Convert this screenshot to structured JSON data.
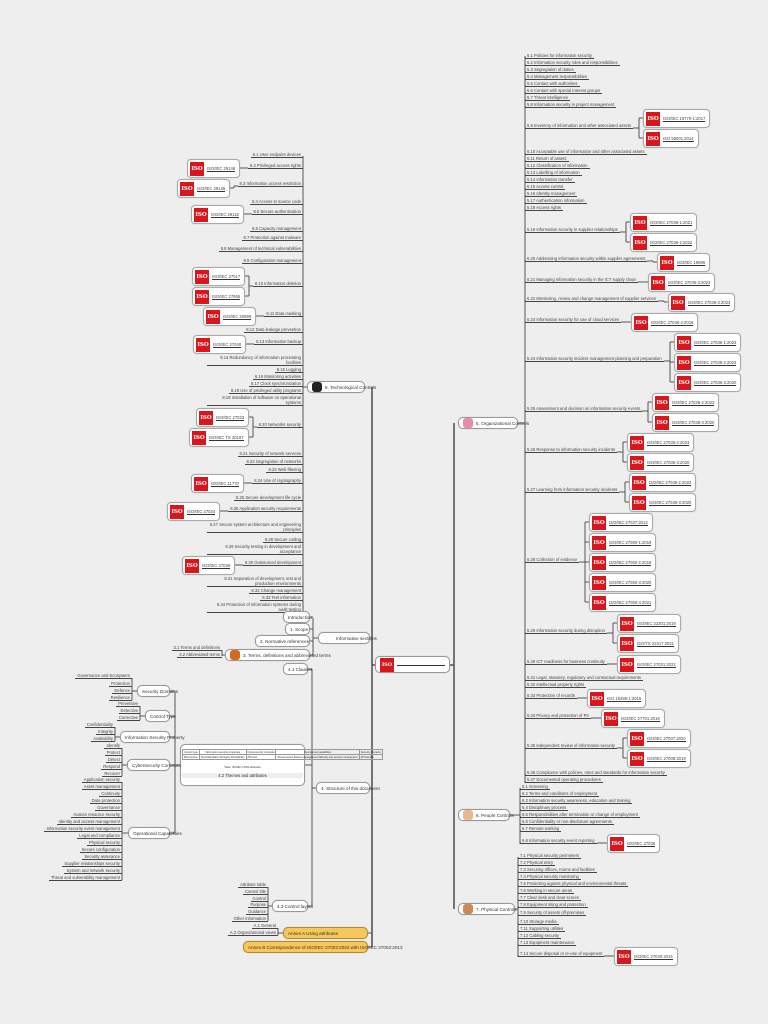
{
  "center": {
    "title": ""
  },
  "org": {
    "label": "5. Organizational Controls",
    "items": [
      {
        "label": "5.1 Policies for information security",
        "refs": []
      },
      {
        "label": "5.2 Information security roles and responsibilities",
        "refs": []
      },
      {
        "label": "5.3 Segregation of duties",
        "refs": []
      },
      {
        "label": "5.4 Management responsibilities",
        "refs": []
      },
      {
        "label": "5.5 Contact with authorities",
        "refs": []
      },
      {
        "label": "5.6 Contact with special interest groups",
        "refs": []
      },
      {
        "label": "5.7 Threat intelligence",
        "refs": []
      },
      {
        "label": "5.8 Information security in project management",
        "refs": []
      },
      {
        "label": "5.9 Inventory of information and other associated assets",
        "refs": [
          "ISO/IEC 19770-1:2017",
          "ISO 55001:2014"
        ]
      },
      {
        "label": "5.10 Acceptable use of information and other associated assets",
        "refs": []
      },
      {
        "label": "5.11 Return of assets",
        "refs": []
      },
      {
        "label": "5.12 Classification of information",
        "refs": []
      },
      {
        "label": "5.13 Labelling of information",
        "refs": []
      },
      {
        "label": "5.14 Information transfer",
        "refs": []
      },
      {
        "label": "5.15 Access control",
        "refs": []
      },
      {
        "label": "5.16 Identity management",
        "refs": []
      },
      {
        "label": "5.17 Authentication information",
        "refs": []
      },
      {
        "label": "5.18 Access rights",
        "refs": []
      },
      {
        "label": "5.19 Information security in supplier relationships",
        "refs": [
          "ISO/IEC 27036-1:2021",
          "ISO/IEC 27036-2:2022"
        ]
      },
      {
        "label": "5.20 Addressing information security within supplier agreements",
        "refs": [
          "ISO/IEC 19086"
        ]
      },
      {
        "label": "5.21 Managing information security in the ICT supply chain",
        "refs": [
          "ISO/IEC 27036-3:2023"
        ]
      },
      {
        "label": "5.22 Monitoring, review and change management of supplier services",
        "refs": [
          "ISO/IEC 27036-3:2023"
        ]
      },
      {
        "label": "5.23 Information security for use of cloud services",
        "refs": [
          "ISO/IEC 27036-4:2016"
        ]
      },
      {
        "label": "5.24 Information security incident management planning and preparation",
        "refs": [
          "ISO/IEC 27035-1:2023",
          "ISO/IEC 27035-2:2023",
          "ISO/IEC 27035-3:2020"
        ]
      },
      {
        "label": "5.25 Assessment and decision on information security events",
        "refs": [
          "ISO/IEC 27035-2:2023",
          "ISO/IEC 27035-3:2020"
        ]
      },
      {
        "label": "5.26 Response to information security incidents",
        "refs": [
          "ISO/IEC 27035-2:2023",
          "ISO/IEC 27035-3:2020"
        ]
      },
      {
        "label": "5.27 Learning from information security incidents",
        "refs": [
          "ISO/IEC 27035-2:2023",
          "ISO/IEC 27035-3:2020"
        ]
      },
      {
        "label": "5.28 Collection of evidence",
        "refs": [
          "ISO/IEC 27037:2012",
          "ISO/IEC 27050-1:2019",
          "ISO/IEC 27050-2:2018",
          "ISO/IEC 27050-3:2020",
          "ISO/IEC 27050-4:2021"
        ]
      },
      {
        "label": "5.29 Information security during disruption",
        "refs": [
          "ISO/IEC 22301:2019",
          "ISO/TS 22317:2021"
        ]
      },
      {
        "label": "5.30 ICT readiness for business continuity",
        "refs": [
          "ISO/IEC 27031:2022"
        ]
      },
      {
        "label": "5.31 Legal, statutory, regulatory and contractual requirements",
        "refs": []
      },
      {
        "label": "5.32 Intellectual property rights",
        "refs": []
      },
      {
        "label": "5.33 Protection of records",
        "refs": [
          "ISO 15489-1:2016"
        ]
      },
      {
        "label": "5.34 Privacy and protection of PII",
        "refs": [
          "ISO/IEC 27701:2019"
        ]
      },
      {
        "label": "5.35 Independent review of information security",
        "refs": [
          "ISO/IEC 27007:2020",
          "ISO/IEC 27008:2019"
        ]
      },
      {
        "label": "5.36 Compliance with policies, rules and standards for information security",
        "refs": []
      },
      {
        "label": "5.37 Documented operating procedures",
        "refs": []
      }
    ]
  },
  "people": {
    "label": "6. People Controls",
    "items": [
      {
        "label": "6.1 Screening",
        "refs": []
      },
      {
        "label": "6.2 Terms and conditions of employment",
        "refs": []
      },
      {
        "label": "6.3 Information security awareness, education and training",
        "refs": []
      },
      {
        "label": "6.4 Disciplinary process",
        "refs": []
      },
      {
        "label": "6.5 Responsibilities after termination or change of employment",
        "refs": []
      },
      {
        "label": "6.6 Confidentiality or non-disclosure agreements",
        "refs": []
      },
      {
        "label": "6.7 Remote working",
        "refs": []
      },
      {
        "label": "6.8 Information security event reporting",
        "refs": [
          "ISO/IEC 27035"
        ]
      }
    ]
  },
  "physical": {
    "label": "7. Physical Controls",
    "items": [
      {
        "label": "7.1 Physical security perimeters",
        "refs": []
      },
      {
        "label": "7.2 Physical entry",
        "refs": []
      },
      {
        "label": "7.3 Securing offices, rooms and facilities",
        "refs": []
      },
      {
        "label": "7.4 Physical security monitoring",
        "refs": []
      },
      {
        "label": "7.5 Protecting against physical and environmental threats",
        "refs": []
      },
      {
        "label": "7.6 Working in secure areas",
        "refs": []
      },
      {
        "label": "7.7 Clear desk and clear screen",
        "refs": []
      },
      {
        "label": "7.8 Equipment siting and protection",
        "refs": []
      },
      {
        "label": "7.9 Security of assets off-premises",
        "refs": []
      },
      {
        "label": "7.10 Storage media",
        "refs": []
      },
      {
        "label": "7.11 Supporting utilities",
        "refs": []
      },
      {
        "label": "7.12 Cabling security",
        "refs": []
      },
      {
        "label": "7.13 Equipment maintenance",
        "refs": []
      },
      {
        "label": "7.14 Secure disposal or re-use of equipment",
        "refs": [
          "ISO/IEC 27040:2015"
        ]
      }
    ]
  },
  "tech": {
    "label": "8. Technological Controls",
    "items": [
      {
        "label": "8.1 User endpoint devices",
        "refs": []
      },
      {
        "label": "8.2 Privileged access rights",
        "refs": [
          "ISO/IEC 29146"
        ]
      },
      {
        "label": "8.3 Information access restriction",
        "refs": [
          "ISO/IEC 29146"
        ]
      },
      {
        "label": "8.4 Access to source code",
        "refs": []
      },
      {
        "label": "8.5 Secure authentication",
        "refs": [
          "ISO/IEC 29115"
        ]
      },
      {
        "label": "8.6 Capacity management",
        "refs": []
      },
      {
        "label": "8.7 Protection against malware",
        "refs": []
      },
      {
        "label": "8.8 Management of technical vulnerabilities",
        "refs": []
      },
      {
        "label": "8.9 Configuration management",
        "refs": []
      },
      {
        "label": "8.10 Information deletion",
        "refs": [
          "ISO/IEC 27017",
          "ISO/IEC 27555"
        ]
      },
      {
        "label": "8.11 Data masking",
        "refs": [
          "ISO/IEC 20889"
        ]
      },
      {
        "label": "8.12 Data leakage prevention",
        "refs": []
      },
      {
        "label": "8.13 Information backup",
        "refs": [
          "ISO/IEC 27040"
        ]
      },
      {
        "label": "8.14 Redundancy of information processing facilities",
        "refs": []
      },
      {
        "label": "8.15 Logging",
        "refs": []
      },
      {
        "label": "8.16 Monitoring activities",
        "refs": []
      },
      {
        "label": "8.17 Clock synchronization",
        "refs": []
      },
      {
        "label": "8.18 Use of privileged utility programs",
        "refs": []
      },
      {
        "label": "8.19 Installation of software on operational systems",
        "refs": []
      },
      {
        "label": "8.20 Networks security",
        "refs": [
          "ISO/IEC 27033",
          "ISO/IEC TS 20167"
        ]
      },
      {
        "label": "8.21 Security of network services",
        "refs": []
      },
      {
        "label": "8.22 Segregation of networks",
        "refs": []
      },
      {
        "label": "8.23 Web filtering",
        "refs": []
      },
      {
        "label": "8.24 Use of cryptography",
        "refs": [
          "ISO/IEC 11770"
        ]
      },
      {
        "label": "8.25 Secure development life cycle",
        "refs": []
      },
      {
        "label": "8.26 Application security requirements",
        "refs": [
          "ISO/IEC 27034"
        ]
      },
      {
        "label": "8.27 Secure system architecture and engineering principles",
        "refs": []
      },
      {
        "label": "8.28 Secure coding",
        "refs": []
      },
      {
        "label": "8.29 Security testing in development and acceptance",
        "refs": []
      },
      {
        "label": "8.30 Outsourced development",
        "refs": [
          "ISO/IEC 27036"
        ]
      },
      {
        "label": "8.31 Separation of development, test and production environments",
        "refs": []
      },
      {
        "label": "8.32 Change management",
        "refs": []
      },
      {
        "label": "8.33 Test information",
        "refs": []
      },
      {
        "label": "8.34 Protection of information systems during audit testing",
        "refs": []
      }
    ]
  },
  "informative": {
    "label": "Informative sections",
    "children": [
      "Introduction",
      "1. Scope",
      "2. Normative references"
    ],
    "terms": {
      "label": "3. Terms, definitions and abbreviated terms",
      "children": [
        "3.1 Terms and definitions",
        "3.2 Abbreviated terms"
      ]
    }
  },
  "structure": {
    "label": "4. Structure of this document",
    "clauses": "4.1 Clauses",
    "themes": {
      "label": "4.2 Themes and attributes",
      "table_caption": "Table: ISO/IEC 27002 attributes",
      "table_headers": [
        "Control type",
        "Information security properties",
        "Cybersecurity concepts",
        "Operational capabilities",
        "Security domains"
      ],
      "table_row": [
        "#Preventive",
        "#Confidentiality #Integrity #Availability",
        "#Protect",
        "#Governance #Asset management #Identity and access management",
        "#Protection"
      ]
    },
    "categories": [
      {
        "label": "Security Domains",
        "children": [
          "Governance and Ecosystem",
          "Protection",
          "Defence",
          "Resilience"
        ]
      },
      {
        "label": "Control Type",
        "children": [
          "Preventive",
          "Detective",
          "Corrective"
        ]
      },
      {
        "label": "Information Security Property",
        "children": [
          "Confidentiality",
          "Integrity",
          "Availability"
        ]
      },
      {
        "label": "Cybersecurity Concepts",
        "children": [
          "Identify",
          "Protect",
          "Detect",
          "Respond",
          "Recover"
        ]
      },
      {
        "label": "Operational Capabilities",
        "children": [
          "Application security",
          "Asset management",
          "Continuity",
          "Data protection",
          "Governance",
          "Human resource security",
          "Identity and access management",
          "Information security event management",
          "Legal and compliance",
          "Physical security",
          "Secure configuration",
          "Security assurance",
          "Supplier relationships security",
          "System and network security",
          "Threat and vulnerability management"
        ]
      }
    ],
    "control_layout": {
      "label": "4.3 Control layout",
      "children": [
        "Attribute table",
        "Control title",
        "Control",
        "Purpose",
        "Guidance",
        "Other information"
      ]
    }
  },
  "annex_a": {
    "label": "Annex A Using attributes",
    "children": [
      "A.1 General",
      "A.2 Organizational views"
    ]
  },
  "annex_b": {
    "label": "Annex B Correspondence of ISO/IEC 27002:2022 with ISO/IEC 27002:2013"
  },
  "colors": {
    "iso_red": "#d9161c",
    "annex": "#f7c75a",
    "line": "#444444"
  }
}
